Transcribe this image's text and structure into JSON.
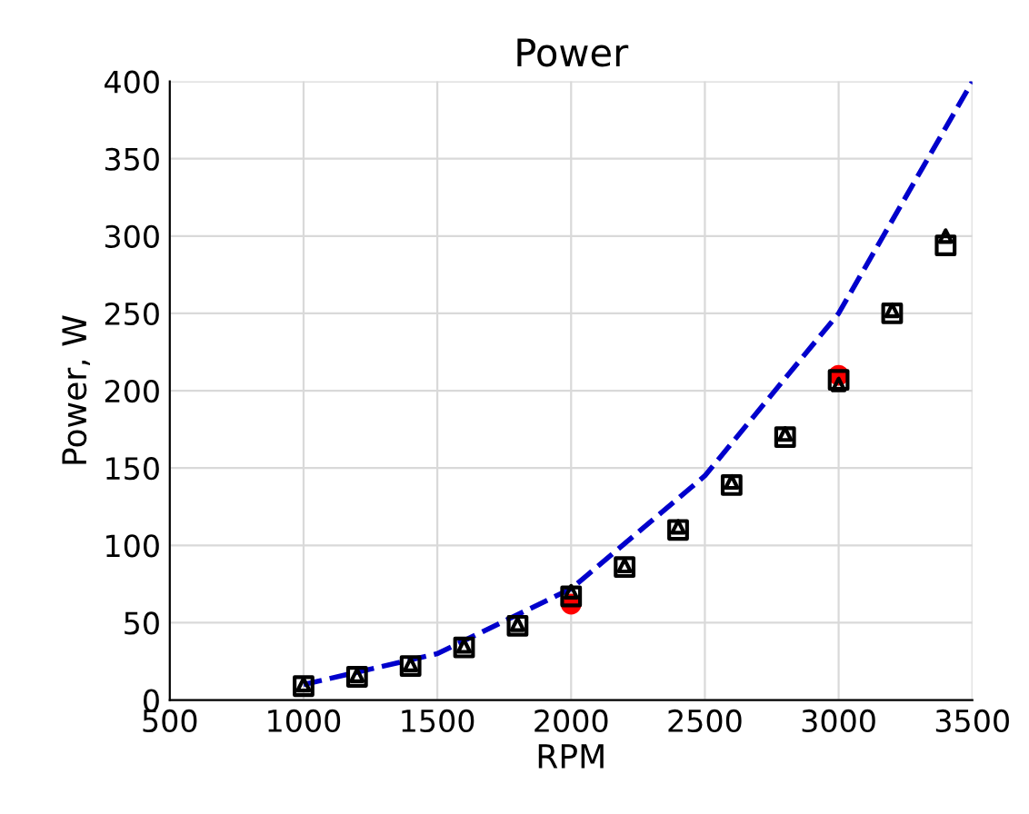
{
  "chart_data": {
    "type": "scatter",
    "title": "Power",
    "xlabel": "RPM",
    "ylabel": "Power, W",
    "xlim": [
      500,
      3500
    ],
    "xticks": [
      500,
      1000,
      1500,
      2000,
      2500,
      3000,
      3500
    ],
    "ylim": [
      0,
      400
    ],
    "yticks": [
      0,
      50,
      100,
      150,
      200,
      250,
      300,
      350,
      400
    ],
    "grid": true,
    "legend": false,
    "series": [
      {
        "marker": "square",
        "color": "#000000",
        "x": [
          1000,
          1200,
          1400,
          1600,
          1800,
          2000,
          2200,
          2400,
          2600,
          2800,
          3000,
          3200,
          3400
        ],
        "values": [
          9,
          15,
          22,
          34,
          48,
          67,
          86,
          110,
          139,
          170,
          207,
          250,
          294
        ]
      },
      {
        "marker": "triangle",
        "color": "#000000",
        "x": [
          1000,
          1200,
          1400,
          1600,
          1800,
          2000,
          2200,
          2400,
          2600,
          2800,
          3000,
          3200,
          3400
        ],
        "values": [
          10,
          16,
          23,
          35,
          49,
          70,
          87,
          112,
          141,
          172,
          204,
          252,
          300
        ]
      },
      {
        "marker": "circle",
        "color": "#ff0000",
        "x": [
          2000,
          3000
        ],
        "values": [
          62,
          210
        ]
      },
      {
        "type": "line",
        "line_style": "dashed",
        "marker": "none",
        "color": "#0000cc",
        "x": [
          1000,
          1500,
          2000,
          2500,
          3000,
          3500
        ],
        "values": [
          10,
          30,
          72,
          145,
          250,
          400
        ]
      }
    ]
  }
}
